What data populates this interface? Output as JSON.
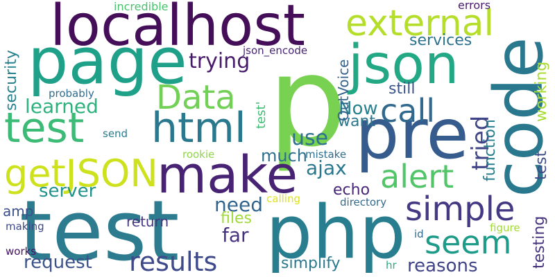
{
  "words": [
    {
      "text": "test",
      "color": "#2c7b8e"
    },
    {
      "text": "php",
      "color": "#287e8e"
    },
    {
      "text": "p",
      "color": "#78d151"
    },
    {
      "text": "localhost",
      "color": "#440f58"
    },
    {
      "text": "pre",
      "color": "#365c8d"
    },
    {
      "text": "page",
      "color": "#1fa088"
    },
    {
      "text": "json",
      "color": "#22a884"
    },
    {
      "text": "code",
      "color": "#2a788e"
    },
    {
      "text": "make",
      "color": "#482374"
    },
    {
      "text": "html",
      "color": "#2a788e"
    },
    {
      "text": "test",
      "color": "#3bbb75"
    },
    {
      "text": "external",
      "color": "#b5de2b"
    },
    {
      "text": "getJSON",
      "color": "#cde11d"
    },
    {
      "text": "Data",
      "color": "#73d056"
    },
    {
      "text": "simple",
      "color": "#443983"
    },
    {
      "text": "alert",
      "color": "#52c569"
    },
    {
      "text": "call",
      "color": "#31688e"
    },
    {
      "text": "seem",
      "color": "#1e9c89"
    },
    {
      "text": "results",
      "color": "#3e4a89"
    },
    {
      "text": "security",
      "color": "#26828e"
    },
    {
      "text": "trying",
      "color": "#481a6c"
    },
    {
      "text": "services",
      "color": "#2c728e"
    },
    {
      "text": "working",
      "color": "#a8db34"
    },
    {
      "text": "tried",
      "color": "#404588"
    },
    {
      "text": "Now",
      "color": "#27808e"
    },
    {
      "text": "learned",
      "color": "#2db27d"
    },
    {
      "text": "still",
      "color": "#3a538b"
    },
    {
      "text": "use",
      "color": "#2d718e"
    },
    {
      "text": "want",
      "color": "#2a778e"
    },
    {
      "text": "ajax",
      "color": "#2a788e"
    },
    {
      "text": "function",
      "color": "#277f8e"
    },
    {
      "text": "much",
      "color": "#2d708e"
    },
    {
      "text": "echo",
      "color": "#482677"
    },
    {
      "text": "server",
      "color": "#20928c"
    },
    {
      "text": "need",
      "color": "#32658e"
    },
    {
      "text": "far",
      "color": "#46327e"
    },
    {
      "text": "files",
      "color": "#a0da39"
    },
    {
      "text": "request",
      "color": "#3b528b"
    },
    {
      "text": "reasons",
      "color": "#414487"
    },
    {
      "text": "testing",
      "color": "#46337e"
    },
    {
      "text": "simplify",
      "color": "#2a788e"
    },
    {
      "text": "return",
      "color": "#453882"
    },
    {
      "text": "amp",
      "color": "#3c4f8a"
    },
    {
      "text": "test",
      "color": "#3e4c8a"
    },
    {
      "text": "OutVoice",
      "color": "#33628d"
    },
    {
      "text": "test'",
      "color": "#3fbc73"
    },
    {
      "text": "incredible",
      "color": "#4ac16d"
    },
    {
      "text": "errors",
      "color": "#481b6d"
    },
    {
      "text": "json_encode",
      "color": "#482576"
    },
    {
      "text": "probably",
      "color": "#2f6c8e"
    },
    {
      "text": "send",
      "color": "#287c8e"
    },
    {
      "text": "rookie",
      "color": "#8fd744"
    },
    {
      "text": "mistake",
      "color": "#2e6e8e"
    },
    {
      "text": "calling",
      "color": "#dde318"
    },
    {
      "text": "directory",
      "color": "#306a8e"
    },
    {
      "text": "making",
      "color": "#3e4989"
    },
    {
      "text": "id",
      "color": "#306a8e"
    },
    {
      "text": "figure",
      "color": "#a2da37"
    },
    {
      "text": "works",
      "color": "#471063"
    },
    {
      "text": "hr",
      "color": "#27ad81"
    }
  ]
}
